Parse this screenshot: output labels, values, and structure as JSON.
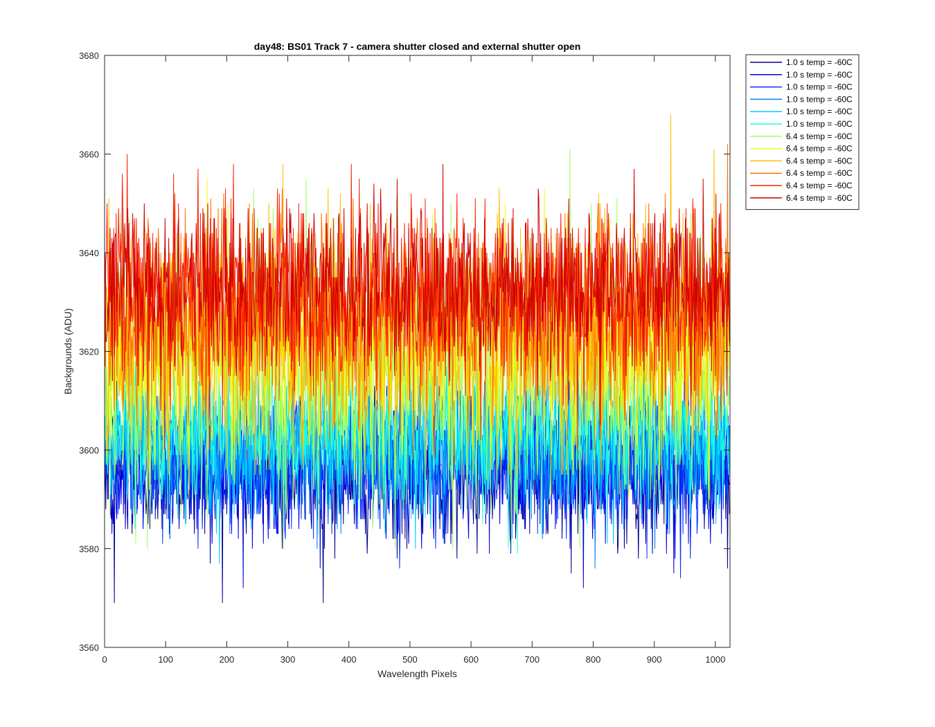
{
  "chart_data": {
    "type": "line",
    "title": "day48: BS01  Track 7 - camera shutter closed and external shutter open",
    "xlabel": "Wavelength Pixels",
    "ylabel": "Backgrounds (ADU)",
    "xlim": [
      0,
      1024
    ],
    "ylim": [
      3560,
      3680
    ],
    "xticks": [
      0,
      100,
      200,
      300,
      400,
      500,
      600,
      700,
      800,
      900,
      1000
    ],
    "yticks": [
      3560,
      3580,
      3600,
      3620,
      3640,
      3660,
      3680
    ],
    "grid": false,
    "legend_position": "outside-top-right",
    "n_points": 1024,
    "series": [
      {
        "name": "1.0 s temp = -60C",
        "color": "#00008F",
        "mean": 3596,
        "low": 3569,
        "high": 3616
      },
      {
        "name": "1.0 s temp = -60C",
        "color": "#0000DF",
        "mean": 3597,
        "low": 3572,
        "high": 3617
      },
      {
        "name": "1.0 s temp = -60C",
        "color": "#0030FF",
        "mean": 3598,
        "low": 3574,
        "high": 3618
      },
      {
        "name": "1.0 s temp = -60C",
        "color": "#0080FF",
        "mean": 3600,
        "low": 3576,
        "high": 3620
      },
      {
        "name": "1.0 s temp = -60C",
        "color": "#00CFFF",
        "mean": 3602,
        "low": 3577,
        "high": 3622
      },
      {
        "name": "1.0 s temp = -60C",
        "color": "#20FFDF",
        "mean": 3604,
        "low": 3579,
        "high": 3624
      },
      {
        "name": "6.4 s temp = -60C",
        "color": "#9FFF60",
        "mean": 3618,
        "low": 3580,
        "high": 3661
      },
      {
        "name": "6.4 s temp = -60C",
        "color": "#EFFF10",
        "mean": 3620,
        "low": 3590,
        "high": 3655
      },
      {
        "name": "6.4 s temp = -60C",
        "color": "#FFBF00",
        "mean": 3624,
        "low": 3595,
        "high": 3668
      },
      {
        "name": "6.4 s temp = -60C",
        "color": "#FF7000",
        "mean": 3628,
        "low": 3598,
        "high": 3662
      },
      {
        "name": "6.4 s temp = -60C",
        "color": "#FF2000",
        "mean": 3631,
        "low": 3600,
        "high": 3660
      },
      {
        "name": "6.4 s temp = -60C",
        "color": "#CF0000",
        "mean": 3633,
        "low": 3602,
        "high": 3658
      }
    ]
  }
}
